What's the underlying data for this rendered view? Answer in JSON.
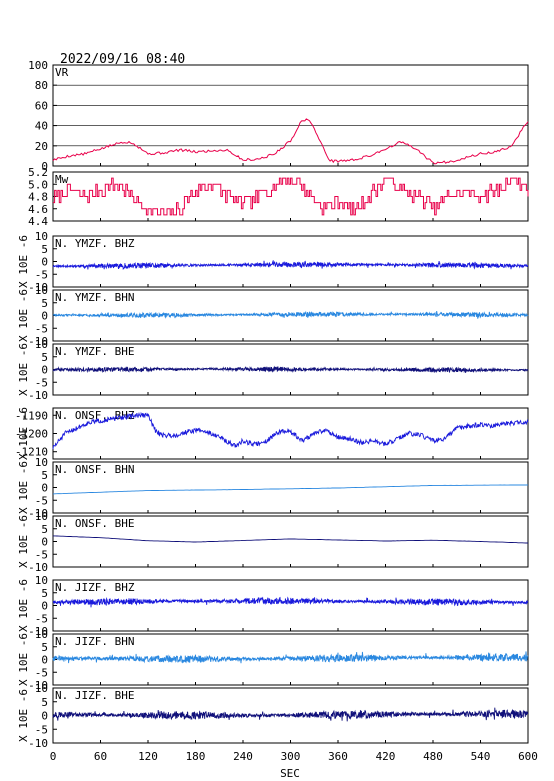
{
  "header": {
    "datetime": "2022/09/16  08:40"
  },
  "chart_data": {
    "type": "line",
    "xlabel": "SEC",
    "xlim": [
      0,
      600
    ],
    "xticks": [
      "0",
      "60",
      "120",
      "180",
      "240",
      "300",
      "360",
      "420",
      "480",
      "540",
      "600"
    ],
    "ylabel_waveform": "X 10E -6",
    "panels": [
      {
        "id": "vr",
        "label": "VR",
        "color": "#e8004a",
        "ylim": [
          0,
          100
        ],
        "yticks": [
          "0",
          "20",
          "40",
          "60",
          "80",
          "100"
        ],
        "grid": true,
        "x": [
          0,
          20,
          40,
          60,
          80,
          90,
          100,
          110,
          120,
          140,
          160,
          180,
          200,
          220,
          240,
          260,
          280,
          300,
          315,
          325,
          340,
          350,
          360,
          380,
          400,
          420,
          440,
          460,
          480,
          500,
          520,
          540,
          560,
          580,
          590,
          600
        ],
        "values": [
          6,
          10,
          12,
          17,
          22,
          24,
          23,
          18,
          12,
          13,
          16,
          14,
          15,
          16,
          6,
          7,
          12,
          25,
          46,
          45,
          20,
          5,
          5,
          6,
          10,
          17,
          24,
          16,
          3,
          4,
          8,
          12,
          14,
          20,
          33,
          45
        ]
      },
      {
        "id": "mw",
        "label": "Mw",
        "color": "#e8004a",
        "ylim": [
          4.4,
          5.2
        ],
        "yticks": [
          "4.4",
          "4.6",
          "4.8",
          "5.0",
          "5.2"
        ],
        "grid": false,
        "x": [
          0,
          20,
          40,
          60,
          80,
          100,
          120,
          140,
          160,
          180,
          200,
          220,
          240,
          260,
          280,
          300,
          320,
          340,
          360,
          380,
          400,
          420,
          440,
          460,
          480,
          500,
          520,
          540,
          560,
          580,
          600
        ],
        "values": [
          4.8,
          4.9,
          4.8,
          4.9,
          5.0,
          4.8,
          4.6,
          4.5,
          4.6,
          4.9,
          5.0,
          4.8,
          4.7,
          4.8,
          5.0,
          5.1,
          4.9,
          4.6,
          4.7,
          4.6,
          4.8,
          5.1,
          4.9,
          4.8,
          4.6,
          4.8,
          4.9,
          4.8,
          4.9,
          5.1,
          4.9
        ]
      },
      {
        "id": "ymzf-bhz",
        "label": "N. YMZF. BHZ",
        "color": "#1a1adc",
        "ylim": [
          -10,
          10
        ],
        "yticks": [
          "-10",
          "-5",
          "0",
          "5",
          "10"
        ],
        "offset": -1.5,
        "amp": 0.7,
        "seed": 11,
        "drift": 0.3
      },
      {
        "id": "ymzf-bhn",
        "label": "N. YMZF. BHN",
        "color": "#2a88e0",
        "ylim": [
          -10,
          10
        ],
        "yticks": [
          "-10",
          "-5",
          "0",
          "5",
          "10"
        ],
        "offset": 0.3,
        "amp": 0.6,
        "seed": 23,
        "drift": 0.2
      },
      {
        "id": "ymzf-bhe",
        "label": "N. YMZF. BHE",
        "color": "#10107a",
        "ylim": [
          -10,
          10
        ],
        "yticks": [
          "-10",
          "-5",
          "0",
          "5",
          "10"
        ],
        "offset": 0.0,
        "amp": 0.6,
        "seed": 37,
        "drift": 0.2
      },
      {
        "id": "onsf-bhz",
        "label": "N. ONSF. BHZ",
        "color": "#1a1adc",
        "ylim": [
          -1214,
          -1186
        ],
        "yticks": [
          "-1210",
          "-1200",
          "-1190"
        ],
        "wander": true,
        "x": [
          0,
          15,
          30,
          45,
          60,
          75,
          90,
          105,
          120,
          130,
          140,
          155,
          170,
          185,
          200,
          215,
          230,
          240,
          255,
          270,
          285,
          300,
          315,
          330,
          345,
          360,
          375,
          390,
          405,
          420,
          435,
          450,
          465,
          480,
          495,
          510,
          525,
          540,
          555,
          570,
          585,
          600
        ],
        "values": [
          -1208,
          -1200,
          -1197,
          -1194,
          -1193,
          -1192,
          -1191,
          -1190,
          -1190,
          -1199,
          -1201,
          -1201,
          -1199,
          -1198,
          -1200,
          -1203,
          -1207,
          -1204,
          -1206,
          -1204,
          -1199,
          -1199,
          -1204,
          -1200,
          -1198,
          -1202,
          -1203,
          -1205,
          -1204,
          -1206,
          -1203,
          -1200,
          -1201,
          -1204,
          -1203,
          -1197,
          -1196,
          -1195,
          -1196,
          -1195,
          -1194,
          -1194
        ],
        "amp": 1.3,
        "seed": 51
      },
      {
        "id": "onsf-bhn",
        "label": "N. ONSF. BHN",
        "color": "#2a88e0",
        "ylim": [
          -10,
          10
        ],
        "yticks": [
          "-10",
          "-5",
          "0",
          "5",
          "10"
        ],
        "smooth": true,
        "x": [
          0,
          120,
          240,
          360,
          480,
          600
        ],
        "values": [
          -2.5,
          -1.2,
          -0.8,
          -0.2,
          0.8,
          1.0
        ],
        "amp": 0.05,
        "seed": 61
      },
      {
        "id": "onsf-bhe",
        "label": "N. ONSF. BHE",
        "color": "#10107a",
        "ylim": [
          -10,
          10
        ],
        "yticks": [
          "-10",
          "-5",
          "0",
          "5",
          "10"
        ],
        "smooth": true,
        "x": [
          0,
          60,
          120,
          180,
          240,
          300,
          360,
          420,
          480,
          540,
          600
        ],
        "values": [
          2.2,
          1.5,
          0.3,
          -0.2,
          0.4,
          1.0,
          0.6,
          0.2,
          0.5,
          0.0,
          -0.6
        ],
        "amp": 0.05,
        "seed": 71
      },
      {
        "id": "jizf-bhz",
        "label": "N. JIZF. BHZ",
        "color": "#1a1adc",
        "ylim": [
          -10,
          10
        ],
        "yticks": [
          "-10",
          "-5",
          "0",
          "5",
          "10"
        ],
        "offset": 1.5,
        "amp": 0.9,
        "seed": 81,
        "drift": 0.3
      },
      {
        "id": "jizf-bhn",
        "label": "N. JIZF. BHN",
        "color": "#2a88e0",
        "ylim": [
          -10,
          10
        ],
        "yticks": [
          "-10",
          "-5",
          "0",
          "5",
          "10"
        ],
        "offset": 0.5,
        "amp": 1.0,
        "seed": 91,
        "drift": 0.3
      },
      {
        "id": "jizf-bhe",
        "label": "N. JIZF. BHE",
        "color": "#10107a",
        "ylim": [
          -10,
          10
        ],
        "yticks": [
          "-10",
          "-5",
          "0",
          "5",
          "10"
        ],
        "offset": 0.3,
        "amp": 1.0,
        "seed": 97,
        "drift": 0.3
      }
    ]
  }
}
